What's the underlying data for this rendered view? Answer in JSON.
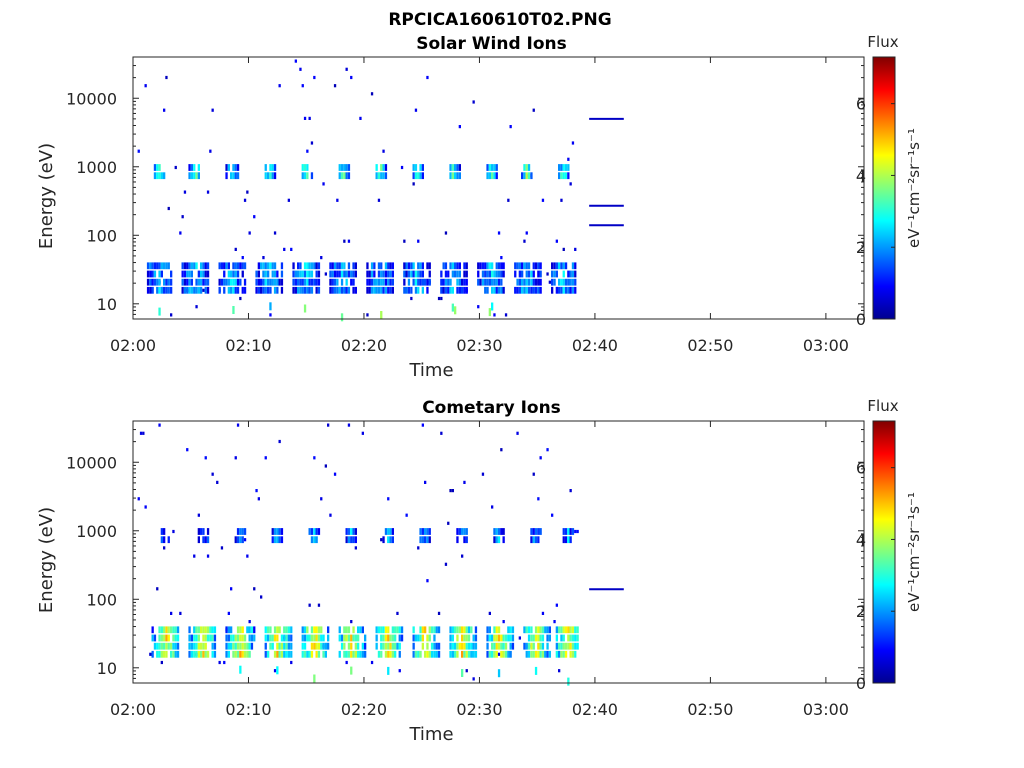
{
  "figure": {
    "title": "RPCICA160610T02.PNG"
  },
  "chart_data": [
    {
      "type": "heatmap",
      "title": "Solar Wind Ions",
      "xlabel": "Time",
      "ylabel": "Energy (eV)",
      "x_ticks": [
        "02:00",
        "02:10",
        "02:20",
        "02:30",
        "02:40",
        "02:50",
        "03:00"
      ],
      "x_range_minutes": [
        0,
        63.3
      ],
      "y_scale": "log",
      "y_ticks": [
        "10",
        "100",
        "1000",
        "10000"
      ],
      "y_range": [
        6,
        40000
      ],
      "colorbar": {
        "title": "Flux",
        "label": "eV⁻¹cm⁻²sr⁻¹s⁻¹",
        "ticks": [
          "0",
          "2",
          "4",
          "6"
        ],
        "range": [
          0,
          7.3
        ],
        "colormap": "jet"
      },
      "data_end_minute": 38.5,
      "burst_centers_minutes": [
        2.2,
        5.3,
        8.5,
        11.7,
        14.9,
        18.1,
        21.3,
        24.5,
        27.7,
        30.9,
        34.0,
        37.2
      ],
      "bands": [
        {
          "name": "upper",
          "e_low": 600,
          "e_high": 1100,
          "flux": 3.3
        },
        {
          "name": "lower",
          "e_low": 12,
          "e_high": 38,
          "flux": 2.2
        }
      ],
      "fill_lines": [
        {
          "x": [
            39.5,
            42.5
          ],
          "energy": 5000,
          "flux": 0.5
        },
        {
          "x": [
            39.5,
            42.5
          ],
          "energy": 270,
          "flux": 0.5
        },
        {
          "x": [
            39.5,
            42.5
          ],
          "energy": 140,
          "flux": 0.5
        }
      ]
    },
    {
      "type": "heatmap",
      "title": "Cometary Ions",
      "xlabel": "Time",
      "ylabel": "Energy (eV)",
      "x_ticks": [
        "02:00",
        "02:10",
        "02:20",
        "02:30",
        "02:40",
        "02:50",
        "03:00"
      ],
      "x_range_minutes": [
        0,
        63.3
      ],
      "y_scale": "log",
      "y_ticks": [
        "10",
        "100",
        "1000",
        "10000"
      ],
      "y_range": [
        6,
        40000
      ],
      "colorbar": {
        "title": "Flux",
        "label": "eV⁻¹cm⁻²sr⁻¹s⁻¹",
        "ticks": [
          "0",
          "2",
          "4",
          "6"
        ],
        "range": [
          0,
          7.3
        ],
        "colormap": "jet"
      },
      "data_end_minute": 38.5,
      "burst_centers_minutes": [
        2.8,
        6.0,
        9.2,
        12.4,
        15.6,
        18.8,
        22.0,
        25.2,
        28.4,
        31.6,
        34.8,
        37.6
      ],
      "bands": [
        {
          "name": "upper",
          "e_low": 650,
          "e_high": 1000,
          "flux": 2.0
        },
        {
          "name": "lower",
          "e_low": 12,
          "e_high": 40,
          "flux": 4.5
        }
      ],
      "fill_lines": [
        {
          "x": [
            39.5,
            42.5
          ],
          "energy": 140,
          "flux": 0.5
        }
      ]
    }
  ]
}
